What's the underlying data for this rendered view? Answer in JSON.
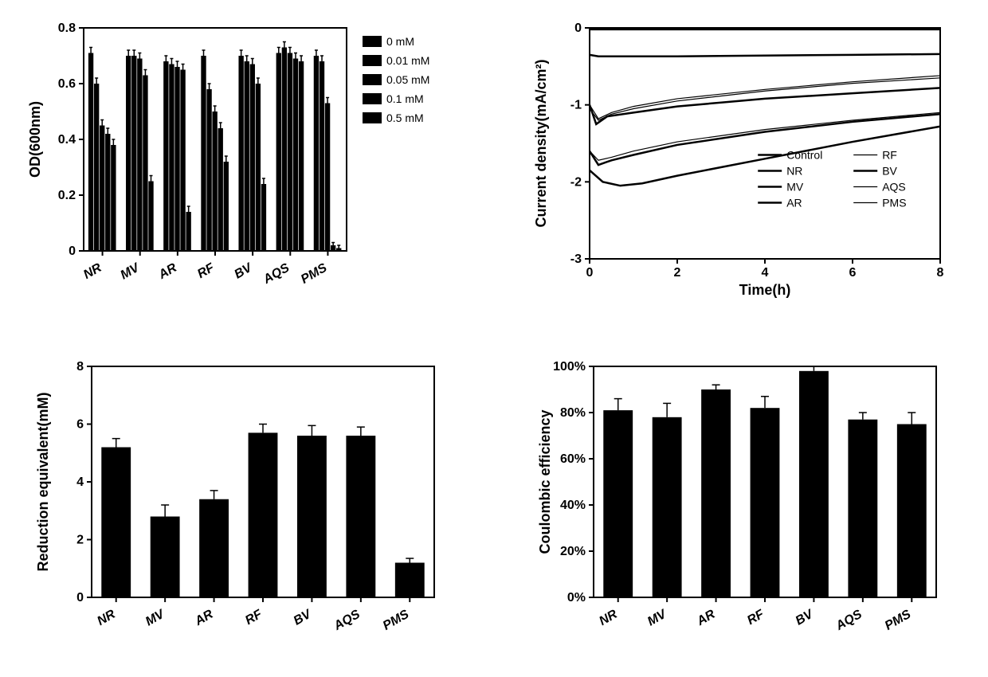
{
  "colors": {
    "bar": "#000000",
    "line": "#000000",
    "bg": "#ffffff",
    "axis": "#000000"
  },
  "typography": {
    "axis_label_fontsize": 18,
    "tick_fontsize": 16,
    "legend_fontsize": 14,
    "font_family": "Arial",
    "cat_italic": true
  },
  "panelA": {
    "type": "grouped-bar",
    "ylabel": "OD(600nm)",
    "ylim": [
      0.0,
      0.8
    ],
    "ytick_step": 0.2,
    "categories": [
      "NR",
      "MV",
      "AR",
      "RF",
      "BV",
      "AQS",
      "PMS"
    ],
    "group_labels": [
      "0 mM",
      "0.01 mM",
      "0.05 mM",
      "0.1 mM",
      "0.5 mM"
    ],
    "legend_swatch": "#000000",
    "bar_color": "#000000",
    "bar_width_rel": 0.15,
    "values": [
      [
        0.71,
        0.6,
        0.45,
        0.42,
        0.38
      ],
      [
        0.7,
        0.7,
        0.69,
        0.63,
        0.25
      ],
      [
        0.68,
        0.67,
        0.66,
        0.65,
        0.14
      ],
      [
        0.7,
        0.58,
        0.5,
        0.44,
        0.32
      ],
      [
        0.7,
        0.68,
        0.67,
        0.6,
        0.24
      ],
      [
        0.71,
        0.73,
        0.71,
        0.69,
        0.68
      ],
      [
        0.7,
        0.68,
        0.53,
        0.02,
        0.01
      ]
    ],
    "errors": [
      [
        0.02,
        0.02,
        0.02,
        0.02,
        0.02
      ],
      [
        0.02,
        0.02,
        0.02,
        0.02,
        0.02
      ],
      [
        0.02,
        0.02,
        0.02,
        0.02,
        0.02
      ],
      [
        0.02,
        0.02,
        0.02,
        0.02,
        0.02
      ],
      [
        0.02,
        0.02,
        0.02,
        0.02,
        0.02
      ],
      [
        0.02,
        0.02,
        0.02,
        0.02,
        0.02
      ],
      [
        0.02,
        0.02,
        0.02,
        0.01,
        0.01
      ]
    ]
  },
  "panelB": {
    "type": "line",
    "xlabel": "Time(h)",
    "ylabel": "Current density(mA/cm²)",
    "xlim": [
      0,
      8
    ],
    "xtick_step": 2,
    "ylim": [
      -3,
      0
    ],
    "ytick_step": 1,
    "line_color": "#000000",
    "legend_cols": 2,
    "series": [
      {
        "name": "Control",
        "width": 2.5,
        "points": [
          [
            0,
            -0.02
          ],
          [
            1,
            -0.02
          ],
          [
            2,
            -0.02
          ],
          [
            4,
            -0.02
          ],
          [
            6,
            -0.02
          ],
          [
            8,
            -0.02
          ]
        ]
      },
      {
        "name": "NR",
        "width": 2.5,
        "points": [
          [
            0,
            -0.35
          ],
          [
            0.2,
            -0.37
          ],
          [
            1,
            -0.37
          ],
          [
            2,
            -0.37
          ],
          [
            4,
            -0.36
          ],
          [
            6,
            -0.35
          ],
          [
            8,
            -0.34
          ]
        ]
      },
      {
        "name": "MV",
        "width": 2.5,
        "points": [
          [
            0,
            -1.0
          ],
          [
            0.15,
            -1.25
          ],
          [
            0.4,
            -1.15
          ],
          [
            1,
            -1.1
          ],
          [
            2,
            -1.02
          ],
          [
            4,
            -0.92
          ],
          [
            6,
            -0.85
          ],
          [
            8,
            -0.78
          ]
        ]
      },
      {
        "name": "AR",
        "width": 2.5,
        "points": [
          [
            0,
            -1.6
          ],
          [
            0.2,
            -1.78
          ],
          [
            0.5,
            -1.72
          ],
          [
            1,
            -1.65
          ],
          [
            2,
            -1.52
          ],
          [
            4,
            -1.35
          ],
          [
            6,
            -1.22
          ],
          [
            8,
            -1.12
          ]
        ]
      },
      {
        "name": "RF",
        "width": 1.2,
        "points": [
          [
            0,
            -1.6
          ],
          [
            0.2,
            -1.72
          ],
          [
            0.5,
            -1.68
          ],
          [
            1,
            -1.6
          ],
          [
            2,
            -1.48
          ],
          [
            4,
            -1.32
          ],
          [
            6,
            -1.2
          ],
          [
            8,
            -1.1
          ]
        ]
      },
      {
        "name": "BV",
        "width": 2.5,
        "points": [
          [
            0,
            -1.85
          ],
          [
            0.3,
            -2.0
          ],
          [
            0.7,
            -2.05
          ],
          [
            1.2,
            -2.02
          ],
          [
            2,
            -1.92
          ],
          [
            4,
            -1.7
          ],
          [
            6,
            -1.48
          ],
          [
            8,
            -1.28
          ]
        ]
      },
      {
        "name": "AQS",
        "width": 1.2,
        "points": [
          [
            0,
            -1.0
          ],
          [
            0.2,
            -1.18
          ],
          [
            0.5,
            -1.1
          ],
          [
            1,
            -1.02
          ],
          [
            2,
            -0.92
          ],
          [
            4,
            -0.8
          ],
          [
            6,
            -0.7
          ],
          [
            8,
            -0.62
          ]
        ]
      },
      {
        "name": "PMS",
        "width": 1.2,
        "points": [
          [
            0,
            -1.05
          ],
          [
            0.2,
            -1.2
          ],
          [
            0.5,
            -1.12
          ],
          [
            1,
            -1.05
          ],
          [
            2,
            -0.95
          ],
          [
            4,
            -0.82
          ],
          [
            6,
            -0.72
          ],
          [
            8,
            -0.65
          ]
        ]
      }
    ]
  },
  "panelC": {
    "type": "bar",
    "ylabel": "Reduction equivalent(mM)",
    "ylim": [
      0,
      8
    ],
    "ytick_step": 2,
    "categories": [
      "NR",
      "MV",
      "AR",
      "RF",
      "BV",
      "AQS",
      "PMS"
    ],
    "bar_color": "#000000",
    "bar_width_rel": 0.6,
    "values": [
      5.2,
      2.8,
      3.4,
      5.7,
      5.6,
      5.6,
      1.2
    ],
    "errors": [
      0.3,
      0.4,
      0.3,
      0.3,
      0.35,
      0.3,
      0.15
    ]
  },
  "panelD": {
    "type": "bar",
    "ylabel": "Coulombic efficiency",
    "ylim": [
      0,
      100
    ],
    "ytick_step": 20,
    "ysuffix": "%",
    "categories": [
      "NR",
      "MV",
      "AR",
      "RF",
      "BV",
      "AQS",
      "PMS"
    ],
    "bar_color": "#000000",
    "bar_width_rel": 0.6,
    "values": [
      81,
      78,
      90,
      82,
      98,
      77,
      75
    ],
    "errors": [
      5,
      6,
      2,
      5,
      2,
      3,
      5
    ]
  }
}
